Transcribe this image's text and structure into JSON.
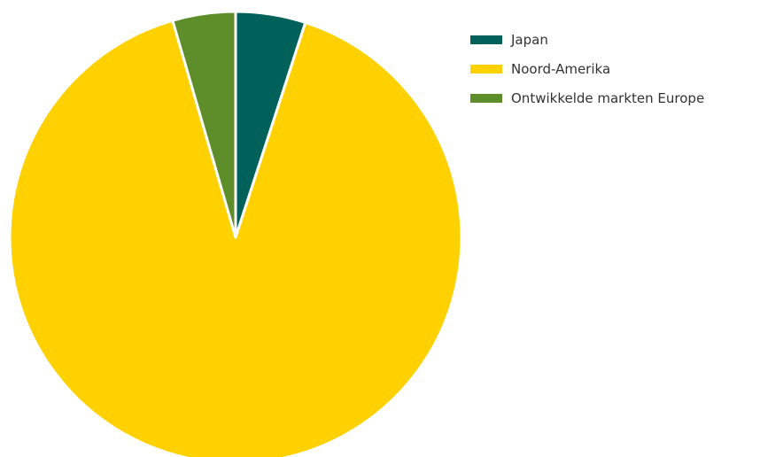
{
  "chart_data": {
    "type": "pie",
    "title": "",
    "legend_position": "top-right",
    "slices": [
      {
        "label": "Japan",
        "value": 5.0,
        "color": "#00605A"
      },
      {
        "label": "Noord-Amerika",
        "value": 90.5,
        "color": "#FFD100"
      },
      {
        "label": "Ontwikkelde markten Europe",
        "value": 4.5,
        "color": "#5E8E2A"
      }
    ],
    "slice_border_color": "#ffffff"
  }
}
